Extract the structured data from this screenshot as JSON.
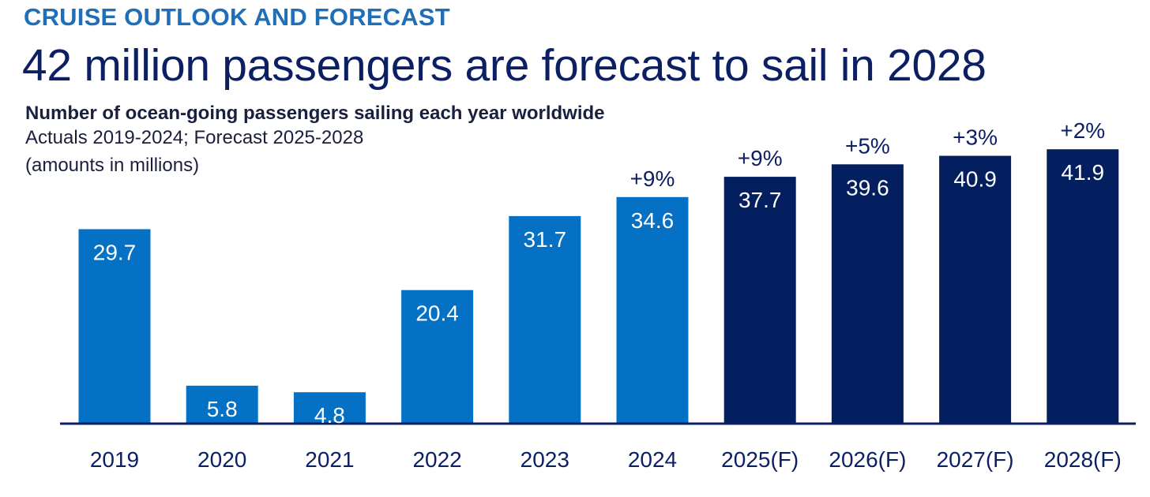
{
  "header": {
    "eyebrow": "CRUISE OUTLOOK AND FORECAST",
    "headline": "42 million passengers are forecast to sail in 2028"
  },
  "chart_data": {
    "type": "bar",
    "title": "Number of ocean-going passengers sailing each year worldwide",
    "notes": [
      "Actuals 2019-2024; Forecast 2025-2028",
      "(amounts in millions)"
    ],
    "categories": [
      "2019",
      "2020",
      "2021",
      "2022",
      "2023",
      "2024",
      "2025(F)",
      "2026(F)",
      "2027(F)",
      "2028(F)"
    ],
    "values": [
      29.7,
      5.8,
      4.8,
      20.4,
      31.7,
      34.6,
      37.7,
      39.6,
      40.9,
      41.9
    ],
    "value_labels": [
      "29.7",
      "5.8",
      "4.8",
      "20.4",
      "31.7",
      "34.6",
      "37.7",
      "39.6",
      "40.9",
      "41.9"
    ],
    "growth_labels": [
      "",
      "",
      "",
      "",
      "",
      "+9%",
      "+9%",
      "+5%",
      "+3%",
      "+2%"
    ],
    "kind": [
      "actual",
      "actual",
      "actual",
      "actual",
      "actual",
      "actual",
      "forecast",
      "forecast",
      "forecast",
      "forecast"
    ],
    "xlabel": "",
    "ylabel": "",
    "ylim": [
      0,
      42
    ],
    "grid": false,
    "colors": {
      "actual": "#0571c4",
      "forecast": "#041f5f",
      "axis": "#0c1f63"
    }
  }
}
